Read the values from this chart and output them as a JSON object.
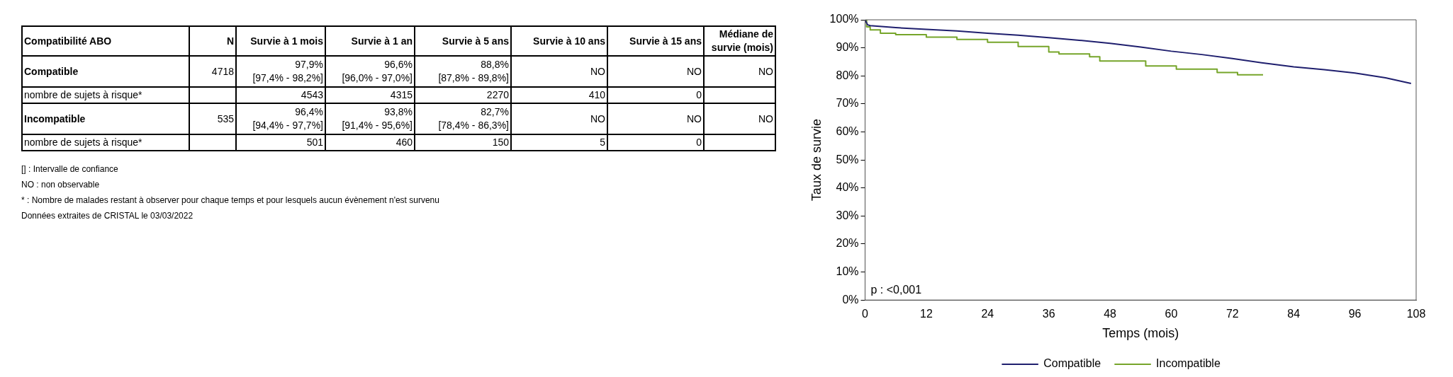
{
  "chart_data": [
    {
      "type": "other",
      "categories": [
        "Compatibilité ABO",
        "N",
        "Survie à 1 mois",
        "Survie à 1 an",
        "Survie à 5 ans",
        "Survie à 10 ans",
        "Survie à 15 ans",
        "Médiane de survie (mois)"
      ],
      "annotations": [
        "Compatible",
        "4718",
        "97,9%\n[97,4% - 98,2%]",
        "96,6%\n[96,0% - 97,0%]",
        "88,8%\n[87,8% - 89,8%]",
        "NO",
        "NO",
        "NO",
        "nombre de sujets à risque*",
        null,
        "4543",
        "4315",
        "2270",
        "410",
        "0",
        null,
        "Incompatible",
        "535",
        "96,4%\n[94,4% - 97,7%]",
        "93,8%\n[91,4% - 95,6%]",
        "82,7%\n[78,4% - 86,3%]",
        "NO",
        "NO",
        "NO",
        "nombre de sujets à risque*",
        null,
        "501",
        "460",
        "150",
        "5",
        "0",
        null,
        "[] : Intervalle de confiance",
        "NO : non observable",
        "* : Nombre de malades restant à observer pour chaque temps et pour lesquels aucun évènement n'est survenu",
        "Données extraites de CRISTAL le 03/03/2022"
      ]
    },
    {
      "type": "step",
      "xlabel": "Temps (mois)",
      "ylabel": "Taux de survie",
      "xlim": [
        0,
        108
      ],
      "xticks": [
        0,
        12,
        24,
        36,
        48,
        60,
        72,
        84,
        96,
        108
      ],
      "ylim": [
        0,
        100
      ],
      "yticks": [
        {
          "value": 0,
          "label": "0%"
        },
        {
          "value": 10,
          "label": "10%"
        },
        {
          "value": 20,
          "label": "20%"
        },
        {
          "value": 30,
          "label": "30%"
        },
        {
          "value": 40,
          "label": "40%"
        },
        {
          "value": 50,
          "label": "50%"
        },
        {
          "value": 60,
          "label": "60%"
        },
        {
          "value": 70,
          "label": "70%"
        },
        {
          "value": 80,
          "label": "80%"
        },
        {
          "value": 90,
          "label": "90%"
        },
        {
          "value": 100,
          "label": "100%"
        }
      ],
      "grid": false,
      "legend": "bottom",
      "marker": "none",
      "annotations": [
        "p : <0,001"
      ],
      "series": [
        {
          "name": "Compatible",
          "type": "line",
          "color": "#1f1f6e",
          "x": [
            0,
            0.5,
            1,
            6,
            12,
            18,
            24,
            30,
            36,
            42,
            48,
            54,
            60,
            66,
            72,
            78,
            84,
            90,
            96,
            102,
            107
          ],
          "values": [
            100,
            98.2,
            97.9,
            97.2,
            96.6,
            96,
            95.2,
            94.5,
            93.6,
            92.7,
            91.6,
            90.3,
            88.8,
            87.6,
            86.2,
            84.6,
            83.2,
            82.2,
            81,
            79.3,
            77.3
          ]
        },
        {
          "name": "Incompatible",
          "color": "#76a52a",
          "x": [
            0,
            0.3,
            1,
            3,
            6,
            12,
            18,
            24,
            30,
            36,
            38,
            44,
            46,
            55,
            61,
            69,
            73,
            78
          ],
          "values": [
            100,
            97.5,
            96.4,
            95.2,
            94.7,
            93.8,
            93,
            92,
            90.5,
            88.5,
            87.8,
            86.8,
            85.3,
            83.5,
            82.4,
            81.2,
            80.4,
            80.4
          ]
        }
      ]
    }
  ]
}
